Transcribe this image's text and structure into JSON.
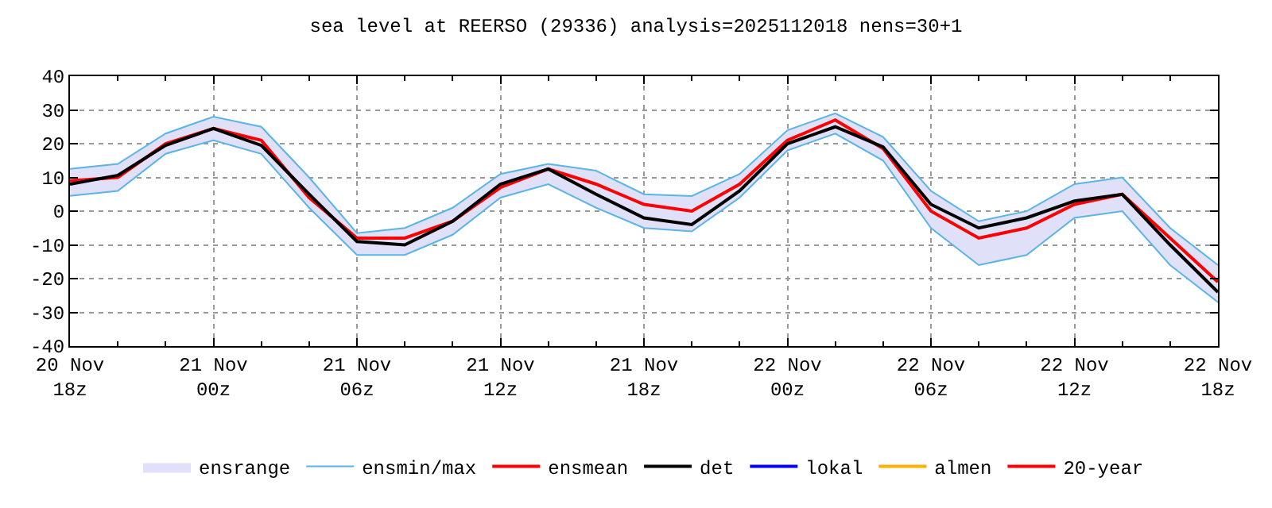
{
  "chart_data": {
    "type": "line",
    "title": "sea level at REERSO (29336) analysis=2025112018 nens=30+1",
    "x": [
      "2025-11-20T18:00",
      "2025-11-20T20:00",
      "2025-11-20T22:00",
      "2025-11-21T00:00",
      "2025-11-21T02:00",
      "2025-11-21T04:00",
      "2025-11-21T06:00",
      "2025-11-21T08:00",
      "2025-11-21T10:00",
      "2025-11-21T12:00",
      "2025-11-21T14:00",
      "2025-11-21T16:00",
      "2025-11-21T18:00",
      "2025-11-21T20:00",
      "2025-11-21T22:00",
      "2025-11-22T00:00",
      "2025-11-22T02:00",
      "2025-11-22T04:00",
      "2025-11-22T06:00",
      "2025-11-22T08:00",
      "2025-11-22T10:00",
      "2025-11-22T12:00",
      "2025-11-22T14:00",
      "2025-11-22T16:00",
      "2025-11-22T18:00"
    ],
    "series": [
      {
        "name": "ensrange",
        "type": "area",
        "color": "#e0e0f8",
        "values": [
          null,
          null,
          null,
          null,
          null,
          null,
          null,
          null,
          null,
          null,
          null,
          null,
          null,
          null,
          null,
          null,
          null,
          null,
          null,
          null,
          null,
          null,
          null,
          null,
          null
        ]
      },
      {
        "name": "ensmin/max",
        "color": "#5ab4e6",
        "values": [
          12.5,
          14,
          23,
          28,
          25,
          10,
          -6.5,
          -5,
          1,
          11,
          14,
          12,
          5,
          4.5,
          11,
          24,
          29,
          22,
          6,
          -3,
          0,
          8,
          10,
          -5,
          -16
        ]
      },
      {
        "color": "#5ab4e6",
        "values": [
          4.5,
          6,
          17,
          21,
          17,
          1,
          -13,
          -13,
          -7,
          4,
          8,
          1,
          -5,
          -6,
          4,
          18,
          23,
          15,
          -5,
          -16,
          -13,
          -2,
          0,
          -16,
          -27
        ]
      },
      {
        "name": "ensmean",
        "color": "#ff0000",
        "values": [
          9,
          10,
          20,
          24.5,
          21,
          4,
          -8,
          -8,
          -3,
          7,
          12.5,
          8,
          2,
          0,
          8,
          21,
          27,
          18.5,
          0,
          -8,
          -5,
          2,
          5,
          -8,
          -21
        ],
        "lower": [
          4.5,
          6,
          17,
          21,
          17,
          1,
          -13,
          -13,
          -7,
          4,
          8,
          1,
          -5,
          -6,
          4,
          18,
          23,
          15,
          -5,
          -16,
          -13,
          -2,
          0,
          -16,
          -27
        ],
        "upper": [
          12.5,
          14,
          23,
          28,
          25,
          10,
          -6.5,
          -5,
          1,
          11,
          14,
          12,
          5,
          4.5,
          11,
          24,
          29,
          22,
          6,
          -3,
          0,
          8,
          10,
          -5,
          -16
        ]
      },
      {
        "name": "det",
        "color": "#000000",
        "values": [
          8,
          10.6,
          19.5,
          24.5,
          19.5,
          5,
          -9,
          -10,
          -3,
          8,
          12.5,
          5,
          -2,
          -4,
          6,
          20,
          25,
          19,
          2,
          -5,
          -2,
          3,
          5,
          -10,
          -24
        ]
      },
      {
        "name": "lokal",
        "color": "#0000ff",
        "values": [
          null,
          null,
          null,
          null,
          null,
          null,
          null,
          null,
          null,
          null,
          null,
          null,
          null,
          null,
          null,
          null,
          null,
          null,
          null,
          null,
          null,
          null,
          null,
          null,
          null
        ]
      },
      {
        "name": "almen",
        "color": "#ffb000",
        "values": [
          null,
          null,
          null,
          null,
          null,
          null,
          null,
          null,
          null,
          null,
          null,
          null,
          null,
          null,
          null,
          null,
          null,
          null,
          null,
          null,
          null,
          null,
          null,
          null,
          null
        ]
      },
      {
        "name": "20-year",
        "color": "#ff0000",
        "values": [
          null,
          null,
          null,
          null,
          null,
          null,
          null,
          null,
          null,
          null,
          null,
          null,
          null,
          null,
          null,
          null,
          null,
          null,
          null,
          null,
          null,
          null,
          null,
          null,
          null
        ]
      }
    ],
    "xlim": [
      "2025-11-20T18:00",
      "2025-11-22T18:00"
    ],
    "xticks": [
      {
        "value": "2025-11-20T18:00",
        "label": "20 Nov\n18z"
      },
      {
        "value": "2025-11-21T00:00",
        "label": "21 Nov\n00z"
      },
      {
        "value": "2025-11-21T06:00",
        "label": "21 Nov\n06z"
      },
      {
        "value": "2025-11-21T12:00",
        "label": "21 Nov\n12z"
      },
      {
        "value": "2025-11-21T18:00",
        "label": "21 Nov\n18z"
      },
      {
        "value": "2025-11-22T00:00",
        "label": "22 Nov\n00z"
      },
      {
        "value": "2025-11-22T06:00",
        "label": "22 Nov\n06z"
      },
      {
        "value": "2025-11-22T12:00",
        "label": "22 Nov\n12z"
      },
      {
        "value": "2025-11-22T18:00",
        "label": "22 Nov\n18z"
      }
    ],
    "ylim": [
      -40,
      40
    ],
    "yticks": [
      -40,
      -30,
      -20,
      -10,
      0,
      10,
      20,
      30,
      40
    ],
    "grid": true,
    "legend": "bottom",
    "marker": "none",
    "line_style": "solid"
  }
}
